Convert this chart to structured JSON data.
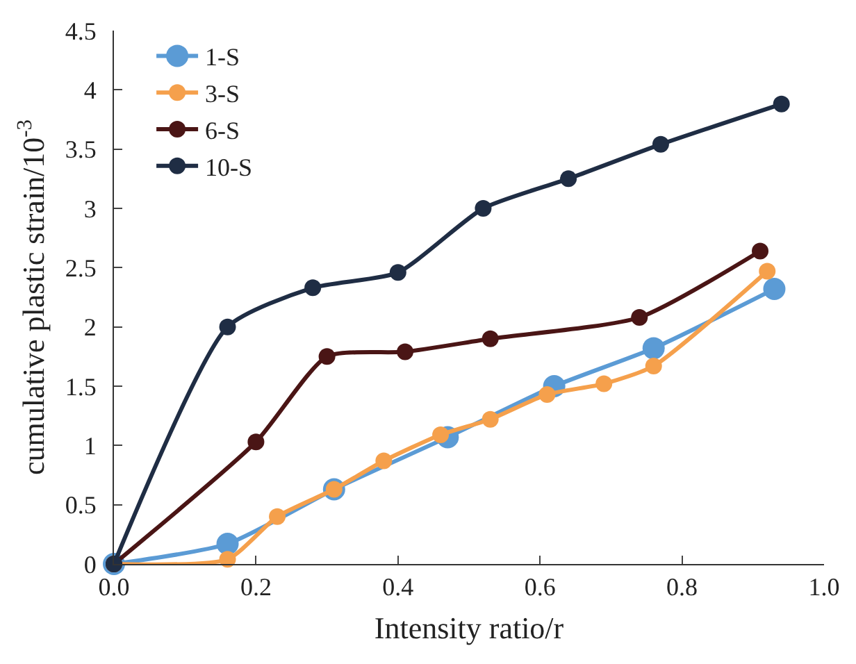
{
  "chart_data": {
    "type": "line",
    "xlabel": "Intensity ratio/r",
    "ylabel": "cumulative plastic strain/10$^{-3}$",
    "xlim": [
      0,
      1
    ],
    "xticks": [
      {
        "value": 0,
        "label": "0.0"
      },
      {
        "value": 0.2,
        "label": "0.2"
      },
      {
        "value": 0.4,
        "label": "0.4"
      },
      {
        "value": 0.6,
        "label": "0.6"
      },
      {
        "value": 0.8,
        "label": "0.8"
      },
      {
        "value": 1,
        "label": "1.0"
      }
    ],
    "ylim": [
      0,
      4.5
    ],
    "yticks": [
      0,
      0.5,
      1,
      1.5,
      2,
      2.5,
      3,
      3.5,
      4,
      4.5
    ],
    "grid": false,
    "legend": "top left",
    "marker": "circle",
    "line_style": "solid",
    "series": [
      {
        "name": "1-S",
        "color": "#5b9bd5",
        "x": [
          0,
          0.16,
          0.31,
          0.47,
          0.62,
          0.76,
          0.93
        ],
        "values": [
          0,
          0.17,
          0.63,
          1.07,
          1.5,
          1.82,
          2.32
        ]
      },
      {
        "name": "3-S",
        "color": "#f5a04c",
        "x": [
          0,
          0.16,
          0.23,
          0.31,
          0.38,
          0.46,
          0.53,
          0.61,
          0.69,
          0.76,
          0.92
        ],
        "values": [
          0,
          0.04,
          0.4,
          0.63,
          0.87,
          1.09,
          1.22,
          1.43,
          1.52,
          1.67,
          2.47
        ]
      },
      {
        "name": "6-S",
        "color": "#4a1515",
        "x": [
          0,
          0.2,
          0.3,
          0.41,
          0.53,
          0.74,
          0.91
        ],
        "values": [
          0,
          1.03,
          1.75,
          1.79,
          1.9,
          2.08,
          2.64
        ]
      },
      {
        "name": "10-S",
        "color": "#1f2d44",
        "x": [
          0,
          0.16,
          0.28,
          0.4,
          0.52,
          0.64,
          0.77,
          0.94
        ],
        "values": [
          0,
          2.0,
          2.33,
          2.46,
          3.0,
          3.25,
          3.54,
          3.88
        ]
      }
    ]
  }
}
